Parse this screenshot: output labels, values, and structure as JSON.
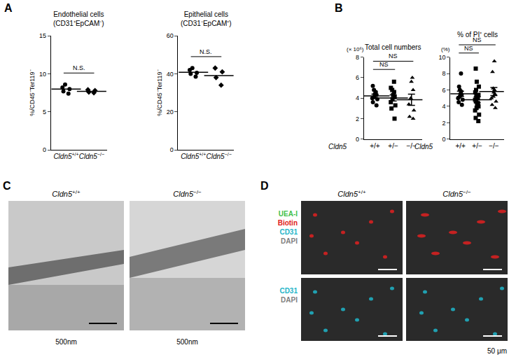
{
  "chart_data": [
    {
      "type": "scatter",
      "panel": "A",
      "title": "Endothelial cells",
      "subtitle": "(CD31⁺EpCAM⁻)",
      "y_label": "%/CD45⁻Ter119⁻",
      "category_prefix": "Cldn5",
      "categories": [
        "+/+",
        "−/−"
      ],
      "groups": [
        {
          "marker": "circle",
          "values": [
            8.0,
            8.6,
            7.4,
            8.2,
            7.7
          ],
          "mean": 8.0
        },
        {
          "marker": "diamond",
          "values": [
            7.6,
            7.8,
            7.5,
            7.9
          ],
          "mean": 7.7
        }
      ],
      "comparisons": [
        {
          "from": "+/+",
          "to": "−/−",
          "label": "N.S."
        }
      ],
      "ylim": [
        0,
        15
      ],
      "yticks": [
        0,
        5,
        10,
        15
      ],
      "grid": false
    },
    {
      "type": "scatter",
      "title": "Epithelial cells",
      "subtitle": "(CD31⁻EpCAM⁺)",
      "y_label": "%/CD45⁻Ter119⁻",
      "category_prefix": "Cldn5",
      "categories": [
        "+/+",
        "−/−"
      ],
      "groups": [
        {
          "marker": "circle",
          "values": [
            40.5,
            42,
            38.5,
            40,
            43
          ],
          "mean": 40.8
        },
        {
          "marker": "diamond",
          "values": [
            43,
            34,
            38,
            41
          ],
          "mean": 39.0
        }
      ],
      "comparisons": [
        {
          "from": "+/+",
          "to": "−/−",
          "label": "N.S."
        }
      ],
      "ylim": [
        0,
        60
      ],
      "yticks": [
        0,
        20,
        40,
        60
      ],
      "grid": false
    },
    {
      "type": "scatter",
      "panel": "B",
      "title": "Total cell numbers",
      "y_unit": "(× 10⁶)",
      "category_axis_label": "Cldn5",
      "categories": [
        "+/+",
        "+/−",
        "−/−"
      ],
      "groups": [
        {
          "marker": "circle",
          "values": [
            5.2,
            4.8,
            4.6,
            4.4,
            4.3,
            4.1,
            3.9,
            3.6,
            3.3,
            4.0
          ],
          "mean": 4.22,
          "sem": 0.18
        },
        {
          "marker": "square",
          "values": [
            5.6,
            5.0,
            4.6,
            4.3,
            4.1,
            3.9,
            3.6,
            3.3,
            3.0,
            2.0,
            4.8
          ],
          "mean": 4.02,
          "sem": 0.3
        },
        {
          "marker": "triangle-up",
          "values": [
            6.0,
            5.6,
            4.8,
            4.0,
            3.4,
            2.8,
            2.2,
            2.0
          ],
          "mean": 3.85,
          "sem": 0.55
        }
      ],
      "comparisons": [
        {
          "from": "+/+",
          "to": "+/−",
          "label": "NS"
        },
        {
          "from": "+/+",
          "to": "−/−",
          "label": "NS"
        }
      ],
      "ylim": [
        0,
        8
      ],
      "yticks": [
        0,
        2,
        4,
        6,
        8
      ],
      "grid": false
    },
    {
      "type": "scatter",
      "title": "% of PI⁺ cells",
      "y_unit": "(%)",
      "category_axis_label": "Cldn5",
      "categories": [
        "+/+",
        "+/−",
        "−/−"
      ],
      "groups": [
        {
          "marker": "circle",
          "values": [
            8.0,
            6.4,
            6.0,
            5.8,
            5.5,
            5.4,
            5.2,
            5.0,
            4.8,
            4.5,
            4.2
          ],
          "mean": 5.53,
          "sem": 0.32
        },
        {
          "marker": "square",
          "values": [
            8.6,
            7.0,
            6.4,
            6.0,
            5.7,
            5.4,
            5.2,
            5.0,
            4.8,
            4.6,
            4.4,
            4.2,
            4.0,
            3.8,
            3.5,
            3.0,
            2.6,
            2.2
          ],
          "mean": 4.8,
          "sem": 0.36
        },
        {
          "marker": "triangle-up",
          "values": [
            9.5,
            8.2,
            6.2,
            6.0,
            5.7,
            5.5,
            5.2,
            5.0,
            4.6,
            4.2,
            3.8
          ],
          "mean": 5.81,
          "sem": 0.5
        }
      ],
      "comparisons": [
        {
          "from": "+/+",
          "to": "+/−",
          "label": "NS"
        },
        {
          "from": "+/+",
          "to": "−/−",
          "label": "NS"
        }
      ],
      "ylim": [
        0,
        10
      ],
      "yticks": [
        0,
        2,
        4,
        6,
        8,
        10
      ],
      "grid": false
    }
  ],
  "micrographs": {
    "C": {
      "label": "C",
      "gene": "Cldn5",
      "columns": [
        "+/+",
        "−/−"
      ],
      "scale_bar_label": "500nm"
    },
    "D": {
      "label": "D",
      "gene": "Cldn5",
      "columns": [
        "+/+",
        "−/−"
      ],
      "rows": [
        [
          {
            "text": "UEA-I",
            "color": "#3fbf4a"
          },
          {
            "text": "Biotin",
            "color": "#e02020"
          },
          {
            "text": "CD31",
            "color": "#1fb5c9"
          },
          {
            "text": "DAPI",
            "color": "#7f7f7f"
          }
        ],
        [
          {
            "text": "CD31",
            "color": "#1fb5c9"
          },
          {
            "text": "DAPI",
            "color": "#7f7f7f"
          }
        ]
      ],
      "scale_bar_label": "50 μm"
    }
  }
}
